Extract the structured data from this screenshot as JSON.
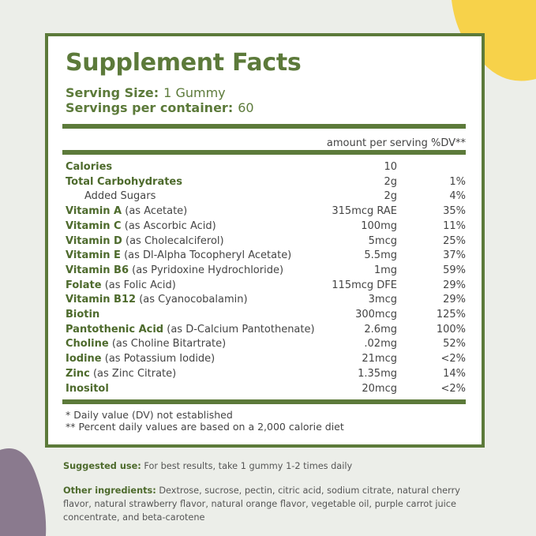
{
  "title": "Supplement Facts",
  "serving_size": {
    "label": "Serving Size:",
    "value": "1 Gummy"
  },
  "servings_per_container": {
    "label": "Servings per container:",
    "value": "60"
  },
  "column_header": "amount per serving %DV**",
  "rows": [
    {
      "name": "Calories",
      "amount": "10"
    },
    {
      "name": "Total Carbohydrates",
      "amount": "2g",
      "dv": "1%"
    },
    {
      "name": "Added Sugars",
      "amount": "2g",
      "dv": "4%",
      "sub": true
    },
    {
      "name": "Vitamin A",
      "qualifier": "(as Acetate)",
      "amount": "315mcg RAE",
      "dv": "35%"
    },
    {
      "name": "Vitamin C",
      "qualifier": "(as Ascorbic Acid)",
      "amount": "100mg",
      "dv": "11%"
    },
    {
      "name": "Vitamin D",
      "qualifier": "(as Cholecalciferol)",
      "amount": "5mcg",
      "dv": "25%"
    },
    {
      "name": "Vitamin E",
      "qualifier": "(as Dl-Alpha Tocopheryl Acetate)",
      "amount": "5.5mg",
      "dv": "37%"
    },
    {
      "name": "Vitamin B6",
      "qualifier": "(as Pyridoxine Hydrochloride)",
      "amount": "1mg",
      "dv": "59%"
    },
    {
      "name": "Folate",
      "qualifier": "(as Folic Acid)",
      "amount": "115mcg DFE",
      "dv": "29%"
    },
    {
      "name": "Vitamin B12",
      "qualifier": "(as Cyanocobalamin)",
      "amount": "3mcg",
      "dv": "29%"
    },
    {
      "name": "Biotin",
      "amount": "300mcg",
      "dv": "125%"
    },
    {
      "name": "Pantothenic Acid",
      "qualifier": "(as D-Calcium Pantothenate)",
      "amount": "2.6mg",
      "dv": "100%"
    },
    {
      "name": "Choline",
      "qualifier": "(as Choline Bitartrate)",
      "amount": ".02mg",
      "dv": "52%"
    },
    {
      "name": "Iodine",
      "qualifier": "(as Potassium Iodide)",
      "amount": "21mcg",
      "dv": "<2%"
    },
    {
      "name": "Zinc",
      "qualifier": "(as Zinc Citrate)",
      "amount": "1.35mg",
      "dv": "14%"
    },
    {
      "name": "Inositol",
      "amount": "20mcg",
      "dv": "<2%"
    }
  ],
  "footnotes": [
    "* Daily value (DV) not established",
    "** Percent daily values are based on a 2,000 calorie diet"
  ],
  "suggested_use": {
    "label": "Suggested use:",
    "text": "For best results, take 1 gummy 1-2 times daily"
  },
  "other_ingredients": {
    "label": "Other ingredients:",
    "text": "Dextrose, sucrose, pectin, citric acid, sodium citrate, natural cherry flavor, natural strawberry flavor, natural orange flavor, vegetable oil, purple carrot juice concentrate, and beta-carotene"
  }
}
